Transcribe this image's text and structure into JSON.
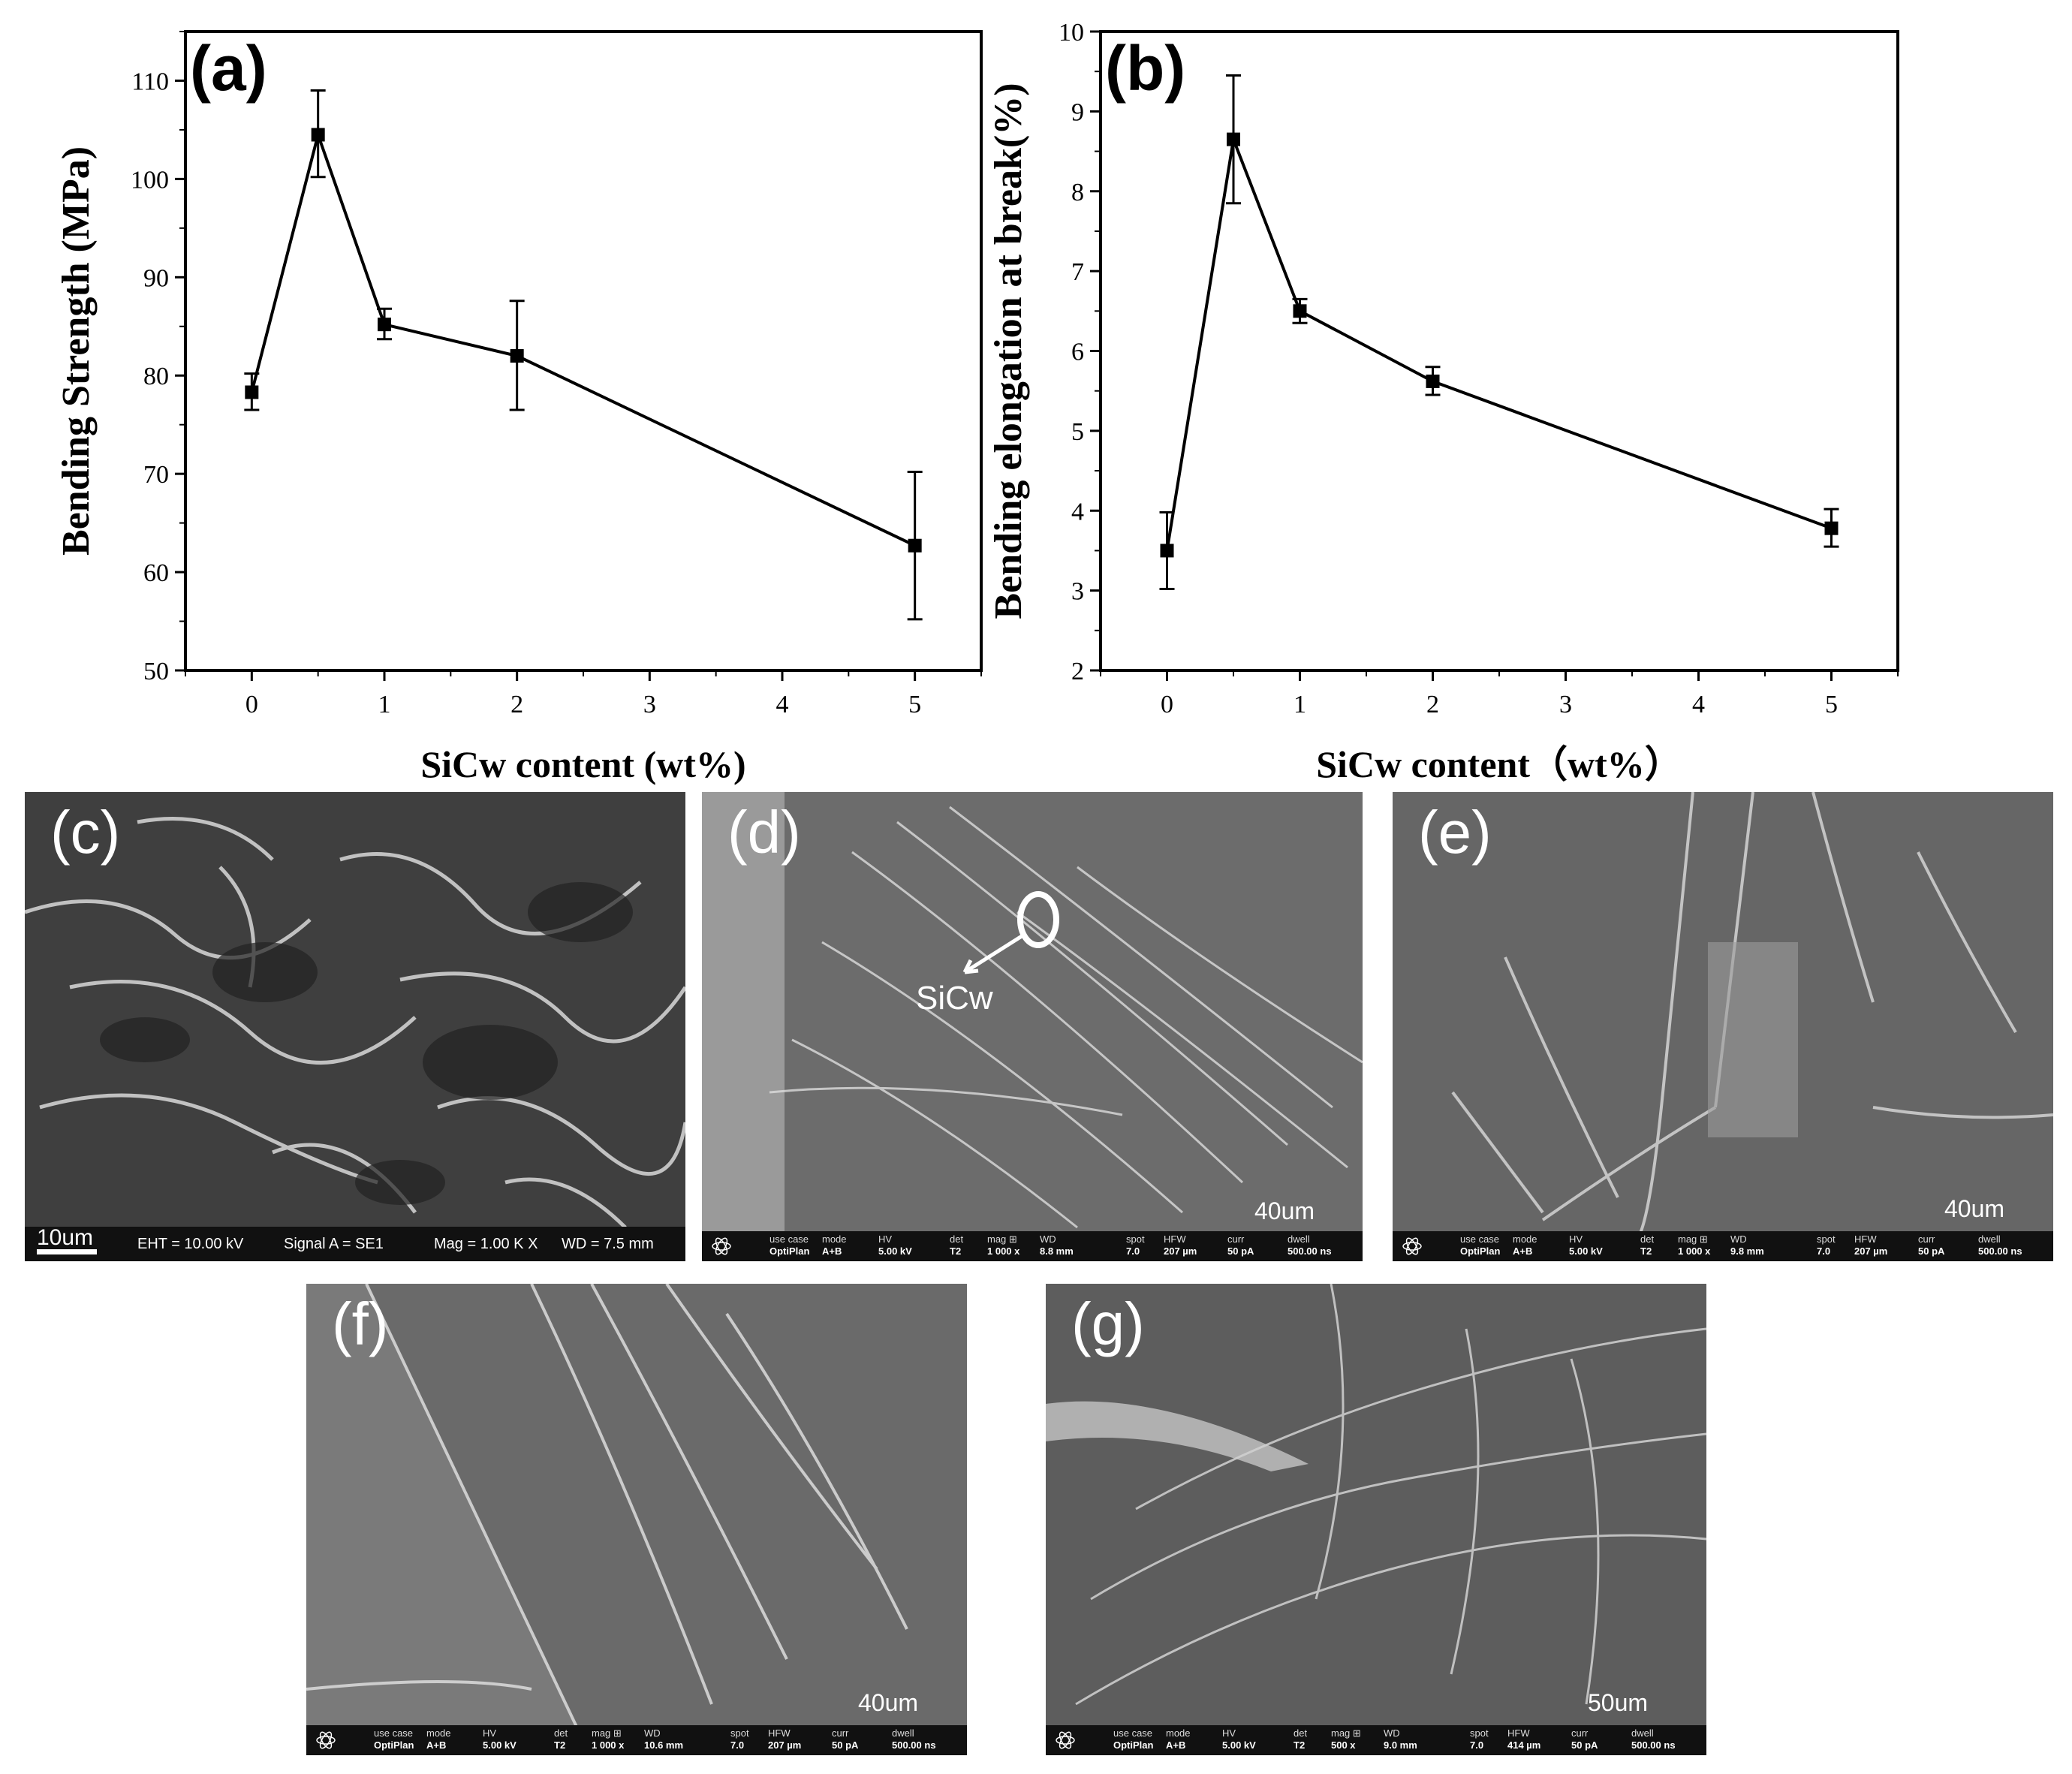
{
  "chart_data": [
    {
      "type": "line",
      "panel_label": "(a)",
      "xlabel": "SiCw content (wt%)",
      "ylabel": "Bending Strength (MPa)",
      "xlim": [
        -0.5,
        5.5
      ],
      "ylim": [
        50,
        115
      ],
      "xticks": [
        "0",
        "1",
        "2",
        "3",
        "4",
        "5"
      ],
      "yticks": [
        "50",
        "60",
        "70",
        "80",
        "90",
        "100",
        "110"
      ],
      "x": [
        0,
        0.5,
        1,
        2,
        5
      ],
      "y": [
        78.3,
        104.5,
        85.2,
        82.0,
        62.7
      ],
      "yerr_low": [
        76.5,
        100.2,
        83.7,
        76.5,
        55.2
      ],
      "yerr_high": [
        80.2,
        109.0,
        86.8,
        87.6,
        70.2
      ],
      "marker": "square",
      "grid": false
    },
    {
      "type": "line",
      "panel_label": "(b)",
      "xlabel": "SiCw content（wt%）",
      "ylabel": "Bending elongation at break(%)",
      "xlim": [
        -0.5,
        5.5
      ],
      "ylim": [
        2,
        10
      ],
      "xticks": [
        "0",
        "1",
        "2",
        "3",
        "4",
        "5"
      ],
      "yticks": [
        "2",
        "3",
        "4",
        "5",
        "6",
        "7",
        "8",
        "9",
        "10"
      ],
      "x": [
        0,
        0.5,
        1,
        2,
        5
      ],
      "y": [
        3.5,
        8.65,
        6.5,
        5.62,
        3.78
      ],
      "yerr_low": [
        3.02,
        7.85,
        6.35,
        5.45,
        3.55
      ],
      "yerr_high": [
        3.98,
        9.45,
        6.65,
        5.8,
        4.02
      ],
      "marker": "square",
      "grid": false
    }
  ],
  "sem_images": [
    {
      "label": "(c)",
      "scalebar": "10um",
      "info": {
        "eht": "EHT = 10.00 kV",
        "signal": "Signal A = SE1",
        "mag": "Mag =    1.00 K X",
        "wd": "WD =  7.5 mm"
      }
    },
    {
      "label": "(d)",
      "scalebar": "40um",
      "annotation": "SiCw",
      "info": [
        {
          "k": "use case",
          "v": "OptiPlan"
        },
        {
          "k": "mode",
          "v": "A+B"
        },
        {
          "k": "HV",
          "v": "5.00 kV"
        },
        {
          "k": "det",
          "v": "T2"
        },
        {
          "k": "mag ⊞",
          "v": "1 000 x"
        },
        {
          "k": "WD",
          "v": "8.8 mm"
        },
        {
          "k": "spot",
          "v": "7.0"
        },
        {
          "k": "HFW",
          "v": "207 µm"
        },
        {
          "k": "curr",
          "v": "50 pA"
        },
        {
          "k": "dwell",
          "v": "500.00 ns"
        }
      ]
    },
    {
      "label": "(e)",
      "scalebar": "40um",
      "info": [
        {
          "k": "use case",
          "v": "OptiPlan"
        },
        {
          "k": "mode",
          "v": "A+B"
        },
        {
          "k": "HV",
          "v": "5.00 kV"
        },
        {
          "k": "det",
          "v": "T2"
        },
        {
          "k": "mag ⊞",
          "v": "1 000 x"
        },
        {
          "k": "WD",
          "v": "9.8 mm"
        },
        {
          "k": "spot",
          "v": "7.0"
        },
        {
          "k": "HFW",
          "v": "207 µm"
        },
        {
          "k": "curr",
          "v": "50 pA"
        },
        {
          "k": "dwell",
          "v": "500.00 ns"
        }
      ]
    },
    {
      "label": "(f)",
      "scalebar": "40um",
      "info": [
        {
          "k": "use case",
          "v": "OptiPlan"
        },
        {
          "k": "mode",
          "v": "A+B"
        },
        {
          "k": "HV",
          "v": "5.00 kV"
        },
        {
          "k": "det",
          "v": "T2"
        },
        {
          "k": "mag ⊞",
          "v": "1 000 x"
        },
        {
          "k": "WD",
          "v": "10.6 mm"
        },
        {
          "k": "spot",
          "v": "7.0"
        },
        {
          "k": "HFW",
          "v": "207 µm"
        },
        {
          "k": "curr",
          "v": "50 pA"
        },
        {
          "k": "dwell",
          "v": "500.00 ns"
        }
      ]
    },
    {
      "label": "(g)",
      "scalebar": "50um",
      "info": [
        {
          "k": "use case",
          "v": "OptiPlan"
        },
        {
          "k": "mode",
          "v": "A+B"
        },
        {
          "k": "HV",
          "v": "5.00 kV"
        },
        {
          "k": "det",
          "v": "T2"
        },
        {
          "k": "mag ⊞",
          "v": "500 x"
        },
        {
          "k": "WD",
          "v": "9.0 mm"
        },
        {
          "k": "spot",
          "v": "7.0"
        },
        {
          "k": "HFW",
          "v": "414 µm"
        },
        {
          "k": "curr",
          "v": "50 pA"
        },
        {
          "k": "dwell",
          "v": "500.00 ns"
        }
      ]
    }
  ]
}
